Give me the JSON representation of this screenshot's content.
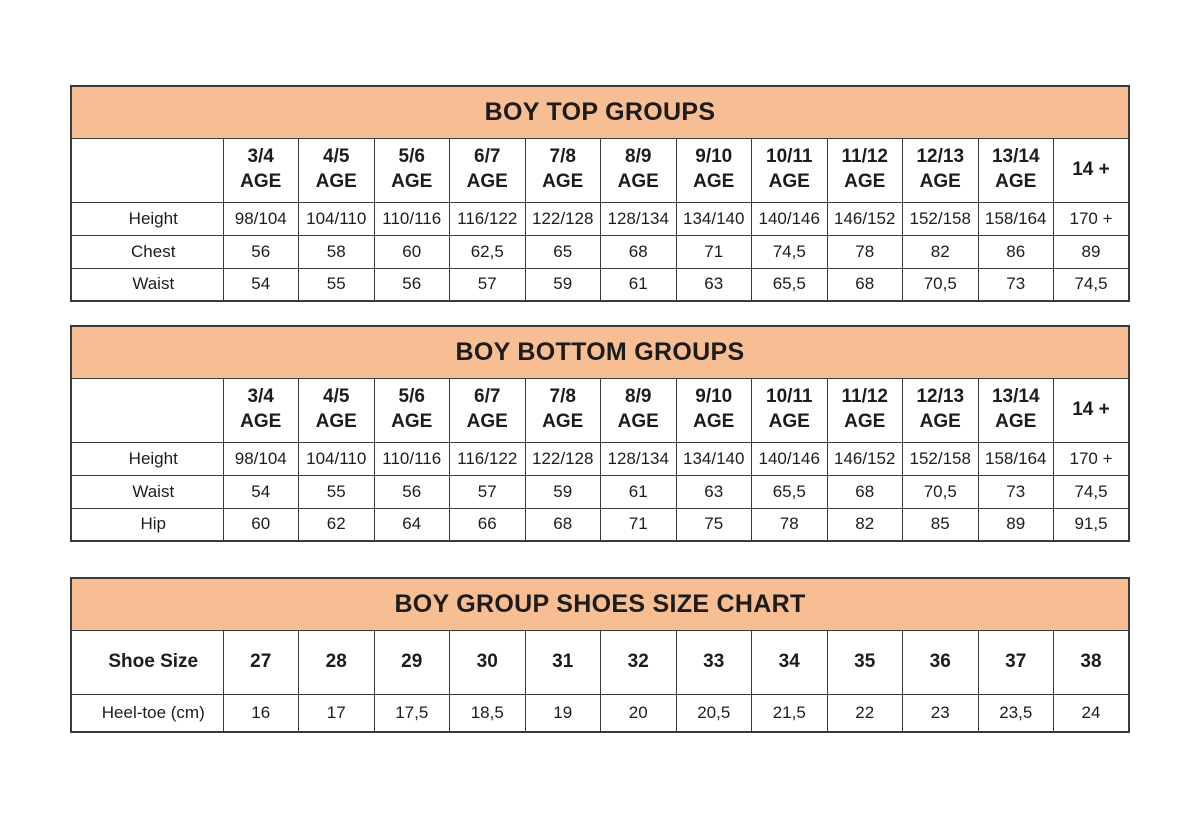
{
  "colors": {
    "header_bg": "#F7BE93",
    "border": "#3A3A3A",
    "text": "#1C1C1C",
    "page_bg": "#FFFFFF"
  },
  "tables": [
    {
      "title": "BOY TOP GROUPS",
      "header_row": {
        "label": "",
        "columns": [
          {
            "label": "3/4",
            "sub": "AGE"
          },
          {
            "label": "4/5",
            "sub": "AGE"
          },
          {
            "label": "5/6",
            "sub": "AGE"
          },
          {
            "label": "6/7",
            "sub": "AGE"
          },
          {
            "label": "7/8",
            "sub": "AGE"
          },
          {
            "label": "8/9",
            "sub": "AGE"
          },
          {
            "label": "9/10",
            "sub": "AGE"
          },
          {
            "label": "10/11",
            "sub": "AGE"
          },
          {
            "label": "11/12",
            "sub": "AGE"
          },
          {
            "label": "12/13",
            "sub": "AGE"
          },
          {
            "label": "13/14",
            "sub": "AGE"
          },
          {
            "label": "14 +",
            "sub": ""
          }
        ]
      },
      "rows": [
        {
          "label": "Height",
          "values": [
            "98/104",
            "104/110",
            "110/116",
            "116/122",
            "122/128",
            "128/134",
            "134/140",
            "140/146",
            "146/152",
            "152/158",
            "158/164",
            "170 +"
          ]
        },
        {
          "label": "Chest",
          "values": [
            "56",
            "58",
            "60",
            "62,5",
            "65",
            "68",
            "71",
            "74,5",
            "78",
            "82",
            "86",
            "89"
          ]
        },
        {
          "label": "Waist",
          "values": [
            "54",
            "55",
            "56",
            "57",
            "59",
            "61",
            "63",
            "65,5",
            "68",
            "70,5",
            "73",
            "74,5"
          ]
        }
      ]
    },
    {
      "title": "BOY BOTTOM GROUPS",
      "header_row": {
        "label": "",
        "columns": [
          {
            "label": "3/4",
            "sub": "AGE"
          },
          {
            "label": "4/5",
            "sub": "AGE"
          },
          {
            "label": "5/6",
            "sub": "AGE"
          },
          {
            "label": "6/7",
            "sub": "AGE"
          },
          {
            "label": "7/8",
            "sub": "AGE"
          },
          {
            "label": "8/9",
            "sub": "AGE"
          },
          {
            "label": "9/10",
            "sub": "AGE"
          },
          {
            "label": "10/11",
            "sub": "AGE"
          },
          {
            "label": "11/12",
            "sub": "AGE"
          },
          {
            "label": "12/13",
            "sub": "AGE"
          },
          {
            "label": "13/14",
            "sub": "AGE"
          },
          {
            "label": "14 +",
            "sub": ""
          }
        ]
      },
      "rows": [
        {
          "label": "Height",
          "values": [
            "98/104",
            "104/110",
            "110/116",
            "116/122",
            "122/128",
            "128/134",
            "134/140",
            "140/146",
            "146/152",
            "152/158",
            "158/164",
            "170 +"
          ]
        },
        {
          "label": "Waist",
          "values": [
            "54",
            "55",
            "56",
            "57",
            "59",
            "61",
            "63",
            "65,5",
            "68",
            "70,5",
            "73",
            "74,5"
          ]
        },
        {
          "label": "Hip",
          "values": [
            "60",
            "62",
            "64",
            "66",
            "68",
            "71",
            "75",
            "78",
            "82",
            "85",
            "89",
            "91,5"
          ]
        }
      ]
    },
    {
      "title": "BOY GROUP SHOES SIZE CHART",
      "header_row": {
        "label": "Shoe Size",
        "columns": [
          {
            "label": "27",
            "sub": ""
          },
          {
            "label": "28",
            "sub": ""
          },
          {
            "label": "29",
            "sub": ""
          },
          {
            "label": "30",
            "sub": ""
          },
          {
            "label": "31",
            "sub": ""
          },
          {
            "label": "32",
            "sub": ""
          },
          {
            "label": "33",
            "sub": ""
          },
          {
            "label": "34",
            "sub": ""
          },
          {
            "label": "35",
            "sub": ""
          },
          {
            "label": "36",
            "sub": ""
          },
          {
            "label": "37",
            "sub": ""
          },
          {
            "label": "38",
            "sub": ""
          }
        ]
      },
      "rows": [
        {
          "label": "Heel-toe (cm)",
          "values": [
            "16",
            "17",
            "17,5",
            "18,5",
            "19",
            "20",
            "20,5",
            "21,5",
            "22",
            "23",
            "23,5",
            "24"
          ]
        }
      ]
    }
  ]
}
